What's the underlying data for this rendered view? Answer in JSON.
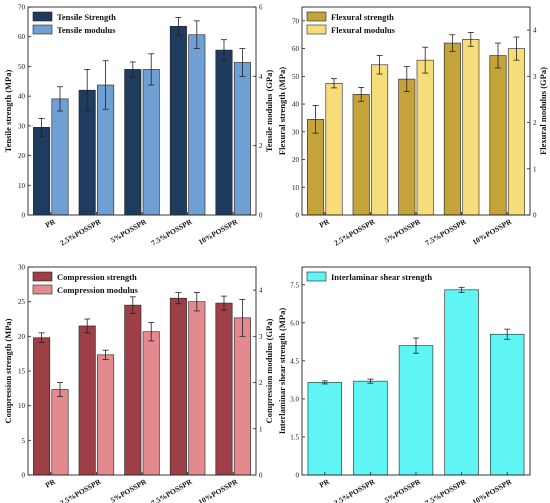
{
  "chart_data": [
    {
      "type": "bar",
      "panel": "a",
      "categories": [
        "PR",
        "2.5%POSSPR",
        "5%POSSPR",
        "7.5%POSSPR",
        "10%POSSPR"
      ],
      "ylabel": "Tensile strength (MPa)",
      "y2label": "Tensile modulus (GPa)",
      "ylim": [
        0,
        70
      ],
      "y2lim": [
        0,
        6
      ],
      "yticks": [
        0,
        10,
        20,
        30,
        40,
        50,
        60,
        70
      ],
      "y2ticks": [
        0,
        2,
        4,
        6
      ],
      "legend_position": "top-left",
      "series": [
        {
          "name": "Tensile Strength",
          "axis": "left",
          "color": "#1f3b5e",
          "values": [
            29.5,
            42,
            49,
            63.5,
            55.5
          ],
          "errors": [
            3,
            7,
            2.5,
            3,
            3.5
          ]
        },
        {
          "name": "Tensile modulus",
          "axis": "right",
          "color": "#6f9fd3",
          "values": [
            3.35,
            3.75,
            4.2,
            5.2,
            4.4
          ],
          "errors": [
            0.35,
            0.7,
            0.45,
            0.4,
            0.4
          ]
        }
      ]
    },
    {
      "type": "bar",
      "panel": "b",
      "categories": [
        "PR",
        "2.5%POSSPR",
        "5%POSSPR",
        "7.5%POSSPR",
        "10%POSSPR"
      ],
      "ylabel": "Flexural strength (MPa)",
      "y2label": "Flexural modulus (GPa)",
      "ylim": [
        0,
        75
      ],
      "y2lim": [
        0,
        4.5
      ],
      "yticks": [
        0,
        10,
        20,
        30,
        40,
        50,
        60,
        70
      ],
      "y2ticks": [
        0,
        1,
        2,
        3,
        4
      ],
      "legend_position": "top-left",
      "series": [
        {
          "name": "Flexural strength",
          "axis": "left",
          "color": "#c4a33b",
          "values": [
            34.5,
            43.5,
            49,
            62,
            57.5
          ],
          "errors": [
            5,
            2.5,
            4.5,
            3,
            4.5
          ]
        },
        {
          "name": "Flexural modulus",
          "axis": "right",
          "color": "#f7dc7a",
          "values": [
            2.85,
            3.25,
            3.35,
            3.8,
            3.6
          ],
          "errors": [
            0.1,
            0.2,
            0.28,
            0.15,
            0.25
          ]
        }
      ]
    },
    {
      "type": "bar",
      "panel": "c",
      "categories": [
        "PR",
        "2.5%POSSPR",
        "5%POSSPR",
        "7.5%POSSPR",
        "10%POSSPR"
      ],
      "ylabel": "Compression strength (MPa)",
      "y2label": "Compression modulus (GPa)",
      "ylim": [
        0,
        30
      ],
      "y2lim": [
        0,
        4.5
      ],
      "yticks": [
        0,
        5,
        10,
        15,
        20,
        25,
        30
      ],
      "y2ticks": [
        0,
        1,
        2,
        3,
        4
      ],
      "legend_position": "top-left",
      "series": [
        {
          "name": "Compression strength",
          "axis": "left",
          "color": "#9e3f48",
          "values": [
            19.8,
            21.5,
            24.5,
            25.5,
            24.8
          ],
          "errors": [
            0.7,
            1,
            1.2,
            0.8,
            1
          ]
        },
        {
          "name": "Compression modulus",
          "axis": "right",
          "color": "#e38a8f",
          "values": [
            1.85,
            2.6,
            3.1,
            3.75,
            3.4
          ],
          "errors": [
            0.15,
            0.1,
            0.2,
            0.2,
            0.4
          ]
        }
      ]
    },
    {
      "type": "bar",
      "panel": "d",
      "categories": [
        "PR",
        "2.5%POSSPR",
        "5%POSSPR",
        "7.5%POSSPR",
        "10%POSSPR"
      ],
      "ylabel": "Interlaminar shear strength (MPa)",
      "ylim": [
        0,
        8.2
      ],
      "yticks": [
        0,
        1.5,
        3.0,
        4.5,
        6.0,
        7.5
      ],
      "ytick_labels": [
        "0",
        "1.5",
        "3.0",
        "4.5",
        "6.0",
        "7.5"
      ],
      "legend_position": "top-left",
      "series": [
        {
          "name": "Interlaminar shear strength",
          "axis": "left",
          "color": "#5ff5f5",
          "values": [
            3.65,
            3.7,
            5.1,
            7.3,
            5.55
          ],
          "errors": [
            0.06,
            0.08,
            0.3,
            0.1,
            0.2
          ]
        }
      ]
    }
  ]
}
